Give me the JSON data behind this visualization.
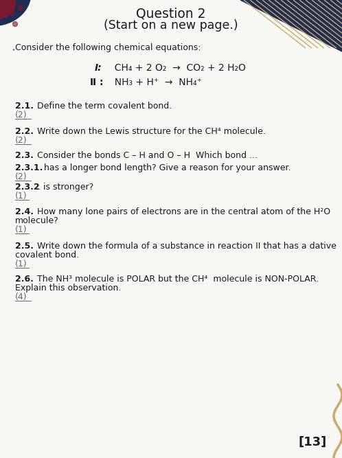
{
  "title_line1": "Question 2",
  "title_line2": "(Start on a new page.)",
  "bg_color": "#f7f7f4",
  "intro": "Consider the following chemical equations:",
  "eq1_label": "I:",
  "eq1": "  CH₄ + 2 O₂  →  CO₂ + 2 H₂O",
  "eq2_label": "Ⅱ :",
  "eq2": "  NH₃ + H⁺  →  NH₄⁺",
  "q21_bold": "2.1.",
  "q21_text": " Define the term covalent bond.",
  "q21_mark": "(2)",
  "q22_bold": "2.2.",
  "q22_text": " Write down the Lewis structure for the CH⁴ molecule.",
  "q22_mark": "(2)",
  "q23_bold": "2.3.",
  "q23_text": " Consider the bonds C – H and O – H  Which bond ...",
  "q231_bold": "2.3.1.",
  "q231_text": " has a longer bond length? Give a reason for your answer.",
  "q231_mark": "(2)",
  "q232_bold": "2.3.2",
  "q232_text": ". is stronger?",
  "q232_mark": "(1)",
  "q24_bold": "2.4.",
  "q24_text": " How many lone pairs of electrons are in the central atom of the H²O",
  "q24_text2": "molecule?",
  "q24_mark": "(1)",
  "q25_bold": "2.5.",
  "q25_text": " Write down the formula of a substance in reaction II that has a dative",
  "q25_text2": "covalent bond.",
  "q25_mark": "(1)",
  "q26_bold": "2.6.",
  "q26_text": " The NH³ molecule is POLAR but the CH⁴  molecule is NON-POLAR.",
  "q26_text2": "Explain this observation.",
  "q26_mark": "(4)",
  "total_mark": "[13]",
  "navy": "#1e2d54",
  "dark_red": "#7a1a2e",
  "gold": "#c9aa6e",
  "text_dark": "#1a1a1a",
  "text_mid": "#444444",
  "mark_color": "#666666"
}
